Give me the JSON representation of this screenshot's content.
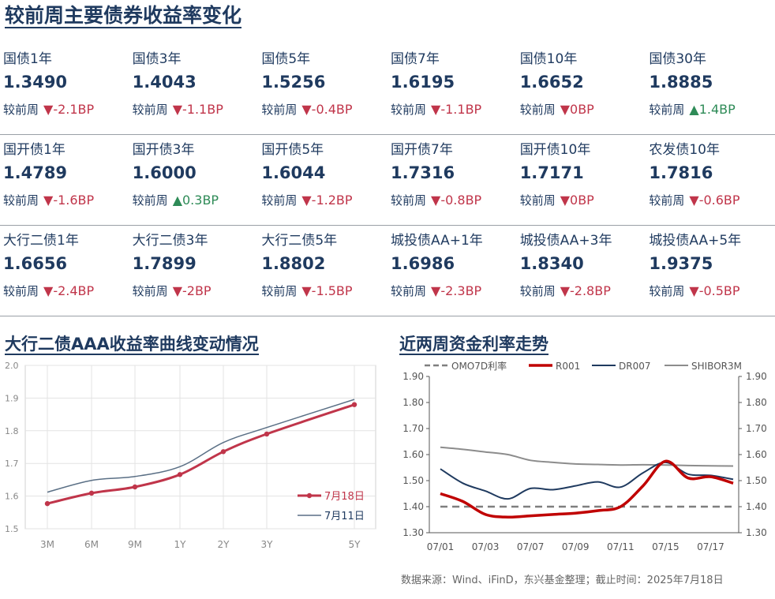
{
  "main_title": "较前周主要债券收益率变化",
  "change_label": "较前周",
  "rows": [
    [
      {
        "name": "国债1年",
        "value": "1.3490",
        "dir": "down",
        "change": "-2.1BP"
      },
      {
        "name": "国债3年",
        "value": "1.4043",
        "dir": "down",
        "change": "-1.1BP"
      },
      {
        "name": "国债5年",
        "value": "1.5256",
        "dir": "down",
        "change": "-0.4BP"
      },
      {
        "name": "国债7年",
        "value": "1.6195",
        "dir": "down",
        "change": "-1.1BP"
      },
      {
        "name": "国债10年",
        "value": "1.6652",
        "dir": "down",
        "change": "0BP"
      },
      {
        "name": "国债30年",
        "value": "1.8885",
        "dir": "up",
        "change": "1.4BP"
      }
    ],
    [
      {
        "name": "国开债1年",
        "value": "1.4789",
        "dir": "down",
        "change": "-1.6BP"
      },
      {
        "name": "国开债3年",
        "value": "1.6000",
        "dir": "up",
        "change": "0.3BP"
      },
      {
        "name": "国开债5年",
        "value": "1.6044",
        "dir": "down",
        "change": "-1.2BP"
      },
      {
        "name": "国开债7年",
        "value": "1.7316",
        "dir": "down",
        "change": "-0.8BP"
      },
      {
        "name": "国开债10年",
        "value": "1.7171",
        "dir": "down",
        "change": "0BP"
      },
      {
        "name": "农发债10年",
        "value": "1.7816",
        "dir": "down",
        "change": "-0.6BP"
      }
    ],
    [
      {
        "name": "大行二债1年",
        "value": "1.6656",
        "dir": "down",
        "change": "-2.4BP"
      },
      {
        "name": "大行二债3年",
        "value": "1.7899",
        "dir": "down",
        "change": "-2BP"
      },
      {
        "name": "大行二债5年",
        "value": "1.8802",
        "dir": "down",
        "change": "-1.5BP"
      },
      {
        "name": "城投债AA+1年",
        "value": "1.6986",
        "dir": "down",
        "change": "-2.3BP"
      },
      {
        "name": "城投债AA+3年",
        "value": "1.8340",
        "dir": "down",
        "change": "-2.8BP"
      },
      {
        "name": "城投债AA+5年",
        "value": "1.9375",
        "dir": "down",
        "change": "-0.5BP"
      }
    ]
  ],
  "left_title": "大行二债AAA收益率曲线变动情况",
  "right_title": "近两周资金利率走势",
  "source": "数据来源：Wind、iFinD，东兴基金整理；截止时间：2025年7月18日",
  "colors": {
    "navy": "#1f3a5f",
    "red": "#c0354a",
    "darkred": "#c00000",
    "gray": "#8c8c8c",
    "dashgray": "#7f7f7f",
    "green": "#2e8b57"
  },
  "chart_data": [
    {
      "type": "line",
      "title": "大行二债AAA收益率曲线变动情况",
      "categories": [
        "3M",
        "6M",
        "9M",
        "1Y",
        "2Y",
        "3Y",
        "5Y"
      ],
      "x_pos": [
        0.25,
        0.5,
        0.75,
        1,
        2,
        3,
        5
      ],
      "ylim": [
        1.5,
        2.0
      ],
      "yticks": [
        "2.0",
        "1.9",
        "1.8",
        "1.7",
        "1.6",
        "1.5"
      ],
      "ytick_values": [
        2.0,
        1.9,
        1.8,
        1.7,
        1.6,
        1.5
      ],
      "legend": "bottom-right",
      "series": [
        {
          "name": "7月18日",
          "values": [
            1.577,
            1.609,
            1.628,
            1.666,
            1.736,
            1.79,
            1.88
          ]
        },
        {
          "name": "7月11日",
          "values": [
            1.612,
            1.648,
            1.66,
            1.69,
            1.764,
            1.81,
            1.896
          ]
        }
      ]
    },
    {
      "type": "line",
      "title": "近两周资金利率走势",
      "x": [
        "07/01",
        "07/02",
        "07/03",
        "07/04",
        "07/07",
        "07/08",
        "07/09",
        "07/10",
        "07/11",
        "07/14",
        "07/15",
        "07/16",
        "07/17",
        "07/18"
      ],
      "xticks": [
        "07/01",
        "07/03",
        "07/07",
        "07/09",
        "07/11",
        "07/15",
        "07/17"
      ],
      "ylim": [
        1.3,
        1.9
      ],
      "yticks": [
        "1.90",
        "1.80",
        "1.70",
        "1.60",
        "1.50",
        "1.40",
        "1.30"
      ],
      "ytick_values": [
        1.9,
        1.8,
        1.7,
        1.6,
        1.5,
        1.4,
        1.3
      ],
      "legend": "top",
      "series": [
        {
          "name": "OMO7D利率",
          "values": [
            1.4,
            1.4,
            1.4,
            1.4,
            1.4,
            1.4,
            1.4,
            1.4,
            1.4,
            1.4,
            1.4,
            1.4,
            1.4,
            1.4
          ]
        },
        {
          "name": "R001",
          "values": [
            1.45,
            1.42,
            1.37,
            1.36,
            1.365,
            1.37,
            1.375,
            1.385,
            1.4,
            1.48,
            1.575,
            1.51,
            1.515,
            1.49
          ]
        },
        {
          "name": "DR007",
          "values": [
            1.545,
            1.49,
            1.46,
            1.43,
            1.47,
            1.465,
            1.48,
            1.495,
            1.475,
            1.53,
            1.57,
            1.525,
            1.52,
            1.505
          ]
        },
        {
          "name": "SHIBOR3M",
          "values": [
            1.628,
            1.62,
            1.61,
            1.6,
            1.578,
            1.57,
            1.564,
            1.562,
            1.56,
            1.561,
            1.56,
            1.558,
            1.557,
            1.556
          ]
        }
      ]
    }
  ]
}
